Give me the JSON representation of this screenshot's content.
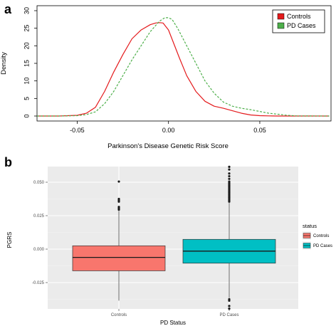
{
  "chart_data": [
    {
      "panel": "a",
      "type": "line",
      "xlabel": "Parkinson's Disease Genetic Risk Score",
      "ylabel": "Density",
      "xlim": [
        -0.072,
        0.089
      ],
      "ylim": [
        0,
        30
      ],
      "xticks": [
        {
          "value": -0.05,
          "label": "-0.05"
        },
        {
          "value": 0.0,
          "label": "0.00"
        },
        {
          "value": 0.05,
          "label": "0.05"
        }
      ],
      "yticks": [
        {
          "value": 0,
          "label": "0"
        },
        {
          "value": 5,
          "label": "5"
        },
        {
          "value": 10,
          "label": "10"
        },
        {
          "value": 15,
          "label": "15"
        },
        {
          "value": 20,
          "label": "20"
        },
        {
          "value": 25,
          "label": "25"
        },
        {
          "value": 30,
          "label": "30"
        }
      ],
      "grid": false,
      "legend": {
        "position": "top-right"
      },
      "series": [
        {
          "name": "Controls",
          "color": "#e41a1c",
          "style": "solid",
          "x": [
            -0.072,
            -0.06,
            -0.05,
            -0.045,
            -0.04,
            -0.035,
            -0.03,
            -0.025,
            -0.02,
            -0.015,
            -0.01,
            -0.007,
            -0.005,
            -0.003,
            0.0,
            0.003,
            0.006,
            0.01,
            0.015,
            0.02,
            0.025,
            0.03,
            0.035,
            0.04,
            0.045,
            0.05,
            0.055,
            0.06,
            0.07,
            0.088
          ],
          "y": [
            0.0,
            0.0,
            0.2,
            0.8,
            2.5,
            7.0,
            12.5,
            17.5,
            22.0,
            24.5,
            26.0,
            26.5,
            26.6,
            26.5,
            24.5,
            20.5,
            16.5,
            11.5,
            7.0,
            4.2,
            2.8,
            2.2,
            1.5,
            0.8,
            0.3,
            0.1,
            0.05,
            0.0,
            0.0,
            0.0
          ]
        },
        {
          "name": "PD Cases",
          "color": "#4daf4a",
          "style": "dashed",
          "x": [
            -0.072,
            -0.06,
            -0.05,
            -0.045,
            -0.04,
            -0.035,
            -0.03,
            -0.025,
            -0.02,
            -0.015,
            -0.01,
            -0.005,
            -0.002,
            0.0,
            0.002,
            0.005,
            0.01,
            0.015,
            0.02,
            0.025,
            0.03,
            0.035,
            0.04,
            0.045,
            0.05,
            0.055,
            0.06,
            0.065,
            0.07,
            0.088
          ],
          "y": [
            0.0,
            0.0,
            0.1,
            0.4,
            1.2,
            3.5,
            7.0,
            11.5,
            16.0,
            20.0,
            24.0,
            27.0,
            28.0,
            28.0,
            27.5,
            25.0,
            20.0,
            15.0,
            10.0,
            6.5,
            4.0,
            2.8,
            2.2,
            1.8,
            1.3,
            0.8,
            0.5,
            0.2,
            0.05,
            0.0
          ]
        }
      ]
    },
    {
      "panel": "b",
      "type": "box",
      "xlabel": "PD Status",
      "ylabel": "PGRS",
      "ylim": [
        -0.046,
        0.064
      ],
      "yticks": [
        {
          "value": -0.025,
          "label": "-0.025"
        },
        {
          "value": 0.0,
          "label": "0.000"
        },
        {
          "value": 0.025,
          "label": "0.025"
        },
        {
          "value": 0.05,
          "label": "0.050"
        }
      ],
      "grid": true,
      "legend": {
        "title": "status",
        "position": "right"
      },
      "categories": [
        "Controls",
        "PD Cases"
      ],
      "boxes": [
        {
          "name": "Controls",
          "color": "#f8766d",
          "q1": -0.0162,
          "median": -0.0062,
          "q3": 0.0025,
          "whisker_low": -0.0385,
          "whisker_high": 0.0286,
          "outliers": [
            0.0295,
            0.0305,
            0.0315,
            0.0355,
            0.0365,
            0.0375,
            0.0505
          ]
        },
        {
          "name": "PD Cases",
          "color": "#00bfc4",
          "q1": -0.0105,
          "median": -0.0015,
          "q3": 0.0073,
          "whisker_low": -0.0365,
          "whisker_high": 0.0345,
          "outliers": [
            -0.0375,
            -0.0385,
            -0.0425,
            -0.0445,
            0.0355,
            0.0365,
            0.0375,
            0.0385,
            0.0395,
            0.0405,
            0.0415,
            0.0425,
            0.0435,
            0.0445,
            0.0455,
            0.0465,
            0.0475,
            0.0485,
            0.0495,
            0.0505,
            0.0525,
            0.0545,
            0.0565,
            0.0595,
            0.0615
          ]
        }
      ]
    }
  ]
}
